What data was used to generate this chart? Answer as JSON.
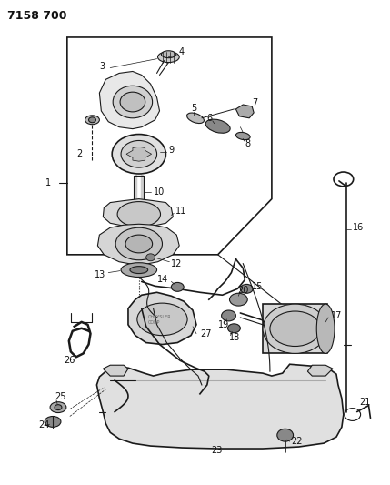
{
  "title": "7158 700",
  "bg_color": "#ffffff",
  "line_color": "#1a1a1a",
  "text_color": "#111111",
  "figsize": [
    4.29,
    5.33
  ],
  "dpi": 100
}
